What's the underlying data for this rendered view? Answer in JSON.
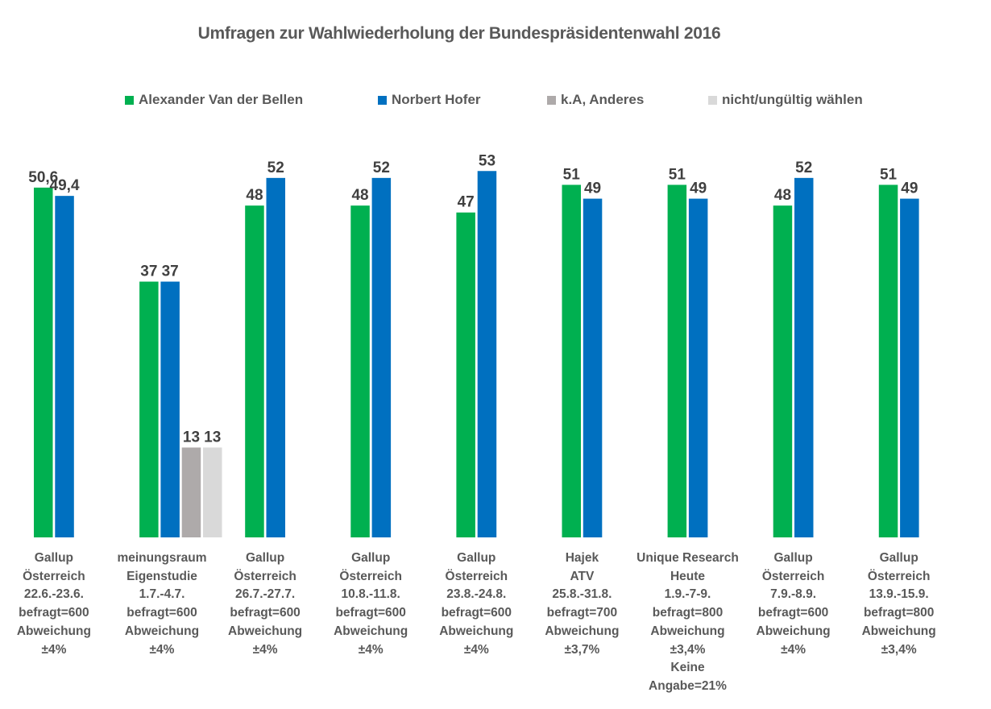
{
  "chart_data": {
    "type": "bar",
    "title": "Umfragen zur Wahlwiederholung der Bundespräsidentenwahl 2016",
    "xlabel": "",
    "ylabel": "",
    "ylim": [
      0,
      55
    ],
    "grid": false,
    "legend_position": "top",
    "series": [
      {
        "name": "Alexander Van der Bellen",
        "color": "#00B050",
        "values": [
          50.6,
          37,
          48,
          48,
          47,
          51,
          51,
          48,
          51
        ],
        "labels": [
          "50,6",
          "37",
          "48",
          "48",
          "47",
          "51",
          "51",
          "48",
          "51"
        ]
      },
      {
        "name": "Norbert Hofer",
        "color": "#0070C0",
        "values": [
          49.4,
          37,
          52,
          52,
          53,
          49,
          49,
          52,
          49
        ],
        "labels": [
          "49,4",
          "37",
          "52",
          "52",
          "53",
          "49",
          "49",
          "52",
          "49"
        ]
      },
      {
        "name": "k.A, Anderes",
        "color": "#AEAAAA",
        "values": [
          null,
          13,
          null,
          null,
          null,
          null,
          null,
          null,
          null
        ],
        "labels": [
          "",
          "13",
          "",
          "",
          "",
          "",
          "",
          "",
          ""
        ]
      },
      {
        "name": "nicht/ungültig wählen",
        "color": "#D9D9D9",
        "values": [
          null,
          13,
          null,
          null,
          null,
          null,
          null,
          null,
          null
        ],
        "labels": [
          "",
          "13",
          "",
          "",
          "",
          "",
          "",
          "",
          ""
        ]
      }
    ],
    "categories": [
      [
        "Gallup",
        "Österreich",
        "22.6.-23.6.",
        "befragt=600",
        "Abweichung",
        "±4%"
      ],
      [
        "meinungsraum",
        "Eigenstudie",
        "1.7.-4.7.",
        "befragt=600",
        "Abweichung",
        "±4%"
      ],
      [
        "Gallup",
        "Österreich",
        "26.7.-27.7.",
        "befragt=600",
        "Abweichung",
        "±4%"
      ],
      [
        "Gallup",
        "Österreich",
        "10.8.-11.8.",
        "befragt=600",
        "Abweichung",
        "±4%"
      ],
      [
        "Gallup",
        "Österreich",
        "23.8.-24.8.",
        "befragt=600",
        "Abweichung",
        "±4%"
      ],
      [
        "Hajek",
        "ATV",
        "25.8.-31.8.",
        "befragt=700",
        "Abweichung",
        "±3,7%"
      ],
      [
        "Unique Research",
        "Heute",
        "1.9.-7-9.",
        "befragt=800",
        "Abweichung",
        "±3,4%",
        "Keine",
        "Angabe=21%"
      ],
      [
        "Gallup",
        "Österreich",
        "7.9.-8.9.",
        "befragt=600",
        "Abweichung",
        "±4%"
      ],
      [
        "Gallup",
        "Österreich",
        "13.9.-15.9.",
        "befragt=800",
        "Abweichung",
        "±3,4%"
      ]
    ]
  },
  "legend": [
    {
      "label": "Alexander Van der Bellen",
      "color": "#00B050"
    },
    {
      "label": "Norbert Hofer",
      "color": "#0070C0"
    },
    {
      "label": "k.A, Anderes",
      "color": "#AEAAAA"
    },
    {
      "label": "nicht/ungültig wählen",
      "color": "#D9D9D9"
    }
  ]
}
